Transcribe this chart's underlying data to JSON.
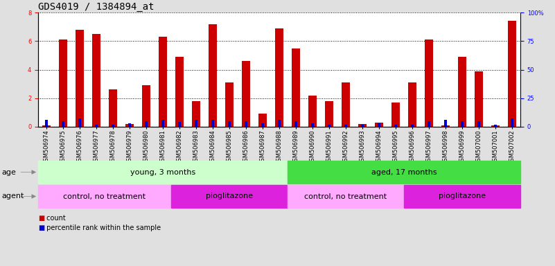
{
  "title": "GDS4019 / 1384894_at",
  "samples": [
    "GSM506974",
    "GSM506975",
    "GSM506976",
    "GSM506977",
    "GSM506978",
    "GSM506979",
    "GSM506980",
    "GSM506981",
    "GSM506982",
    "GSM506983",
    "GSM506984",
    "GSM506985",
    "GSM506986",
    "GSM506987",
    "GSM506988",
    "GSM506989",
    "GSM506990",
    "GSM506991",
    "GSM506992",
    "GSM506993",
    "GSM506994",
    "GSM506995",
    "GSM506996",
    "GSM506997",
    "GSM506998",
    "GSM506999",
    "GSM507000",
    "GSM507001",
    "GSM507002"
  ],
  "count_values": [
    0.1,
    6.1,
    6.8,
    6.5,
    2.6,
    0.2,
    2.9,
    6.3,
    4.9,
    1.8,
    7.2,
    3.1,
    4.6,
    0.9,
    6.9,
    5.5,
    2.2,
    1.8,
    3.1,
    0.2,
    0.3,
    1.7,
    3.1,
    6.1,
    0.1,
    4.9,
    3.9,
    0.1,
    7.4
  ],
  "percentile_values": [
    6,
    5,
    7,
    2,
    2,
    3,
    5,
    6,
    4,
    6,
    6,
    5,
    5,
    3,
    6,
    5,
    3,
    2,
    2,
    2,
    3,
    2,
    2,
    5,
    6,
    5,
    5,
    2,
    7
  ],
  "count_color": "#cc0000",
  "percentile_color": "#0000cc",
  "ylim_left": [
    0,
    8
  ],
  "ylim_right": [
    0,
    100
  ],
  "yticks_left": [
    0,
    2,
    4,
    6,
    8
  ],
  "yticks_right": [
    0,
    25,
    50,
    75,
    100
  ],
  "ytick_right_labels": [
    "0",
    "25",
    "50",
    "75",
    "100%"
  ],
  "bg_color": "#e0e0e0",
  "plot_bg_color": "#ffffff",
  "age_groups": [
    {
      "label": "young, 3 months",
      "start": 0,
      "end": 15,
      "color": "#ccffcc"
    },
    {
      "label": "aged, 17 months",
      "start": 15,
      "end": 29,
      "color": "#44dd44"
    }
  ],
  "agent_groups": [
    {
      "label": "control, no treatment",
      "start": 0,
      "end": 8,
      "color": "#ffaaff"
    },
    {
      "label": "pioglitazone",
      "start": 8,
      "end": 15,
      "color": "#dd22dd"
    },
    {
      "label": "control, no treatment",
      "start": 15,
      "end": 22,
      "color": "#ffaaff"
    },
    {
      "label": "pioglitazone",
      "start": 22,
      "end": 29,
      "color": "#dd22dd"
    }
  ],
  "age_label": "age",
  "agent_label": "agent",
  "legend_count": "count",
  "legend_percentile": "percentile rank within the sample",
  "title_fontsize": 10,
  "tick_fontsize": 6,
  "annot_fontsize": 8,
  "legend_fontsize": 8
}
